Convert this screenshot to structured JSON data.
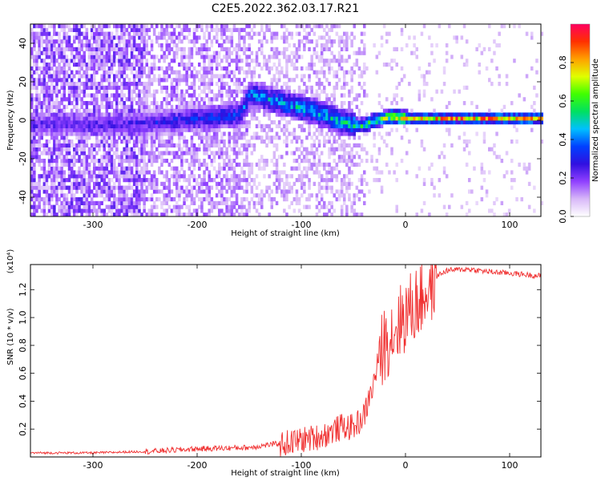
{
  "title": "C2E5.2022.362.03.17.R21",
  "chart_data": [
    {
      "type": "heatmap",
      "xlabel": "Height of straight line (km)",
      "ylabel": "Frequency (Hz)",
      "xlim": [
        -360,
        130
      ],
      "ylim": [
        -50,
        50
      ],
      "x_ticks": [
        -300,
        -200,
        -100,
        0,
        100
      ],
      "y_ticks": [
        -40,
        -20,
        0,
        20,
        40
      ],
      "colorbar": {
        "label": "Normalized spectral amplitude",
        "range": [
          0,
          1
        ],
        "ticks": [
          "0.0",
          "0.2",
          "0.4",
          "0.6",
          "0.8"
        ],
        "colormap": [
          "#ffffff",
          "#d8b8f8",
          "#9040ff",
          "#3010e0",
          "#0040ff",
          "#00c0ff",
          "#00e060",
          "#40ff00",
          "#e0ff00",
          "#ffa000",
          "#ff3000",
          "#ff0060"
        ]
      },
      "ridge": [
        {
          "x": -280,
          "freq": -3,
          "amp": 0.3
        },
        {
          "x": -240,
          "freq": -2,
          "amp": 0.35
        },
        {
          "x": -200,
          "freq": 0,
          "amp": 0.4
        },
        {
          "x": -160,
          "freq": 2,
          "amp": 0.45
        },
        {
          "x": -150,
          "freq": 13,
          "amp": 0.5
        },
        {
          "x": -120,
          "freq": 8,
          "amp": 0.55
        },
        {
          "x": -90,
          "freq": 4,
          "amp": 0.58
        },
        {
          "x": -60,
          "freq": -2,
          "amp": 0.62
        },
        {
          "x": -45,
          "freq": -4,
          "amp": 0.66
        },
        {
          "x": -30,
          "freq": -1,
          "amp": 0.75
        },
        {
          "x": -15,
          "freq": 1,
          "amp": 0.85
        },
        {
          "x": 0,
          "freq": 0,
          "amp": 0.95
        },
        {
          "x": 130,
          "freq": 0,
          "amp": 1.0
        }
      ]
    },
    {
      "type": "line",
      "xlabel": "Height of straight line (km)",
      "ylabel": "SNR (10 * v/v)",
      "scale_label": "(x10⁴)",
      "color": "#f03030",
      "xlim": [
        -360,
        130
      ],
      "ylim": [
        0,
        1.38
      ],
      "x_ticks": [
        -300,
        -200,
        -100,
        0,
        100
      ],
      "y_ticks": [
        0.2,
        0.4,
        0.6,
        0.8,
        1.0,
        1.2
      ],
      "y_tick_labels": [
        "0.2",
        "0.4",
        "0.6",
        "0.8",
        "1.0",
        "1.2"
      ],
      "series": [
        {
          "x": [
            -360,
            -300,
            -250,
            -200,
            -150,
            -120,
            -100,
            -80,
            -60,
            -50,
            -40,
            -30,
            -25,
            -20,
            -10,
            0,
            10,
            20,
            30,
            40,
            60,
            80,
            100,
            130
          ],
          "y": [
            0.03,
            0.03,
            0.04,
            0.06,
            0.07,
            0.1,
            0.13,
            0.16,
            0.23,
            0.22,
            0.3,
            0.55,
            0.75,
            0.85,
            0.95,
            1.05,
            1.12,
            1.22,
            1.3,
            1.34,
            1.35,
            1.33,
            1.32,
            1.3
          ]
        }
      ]
    }
  ]
}
